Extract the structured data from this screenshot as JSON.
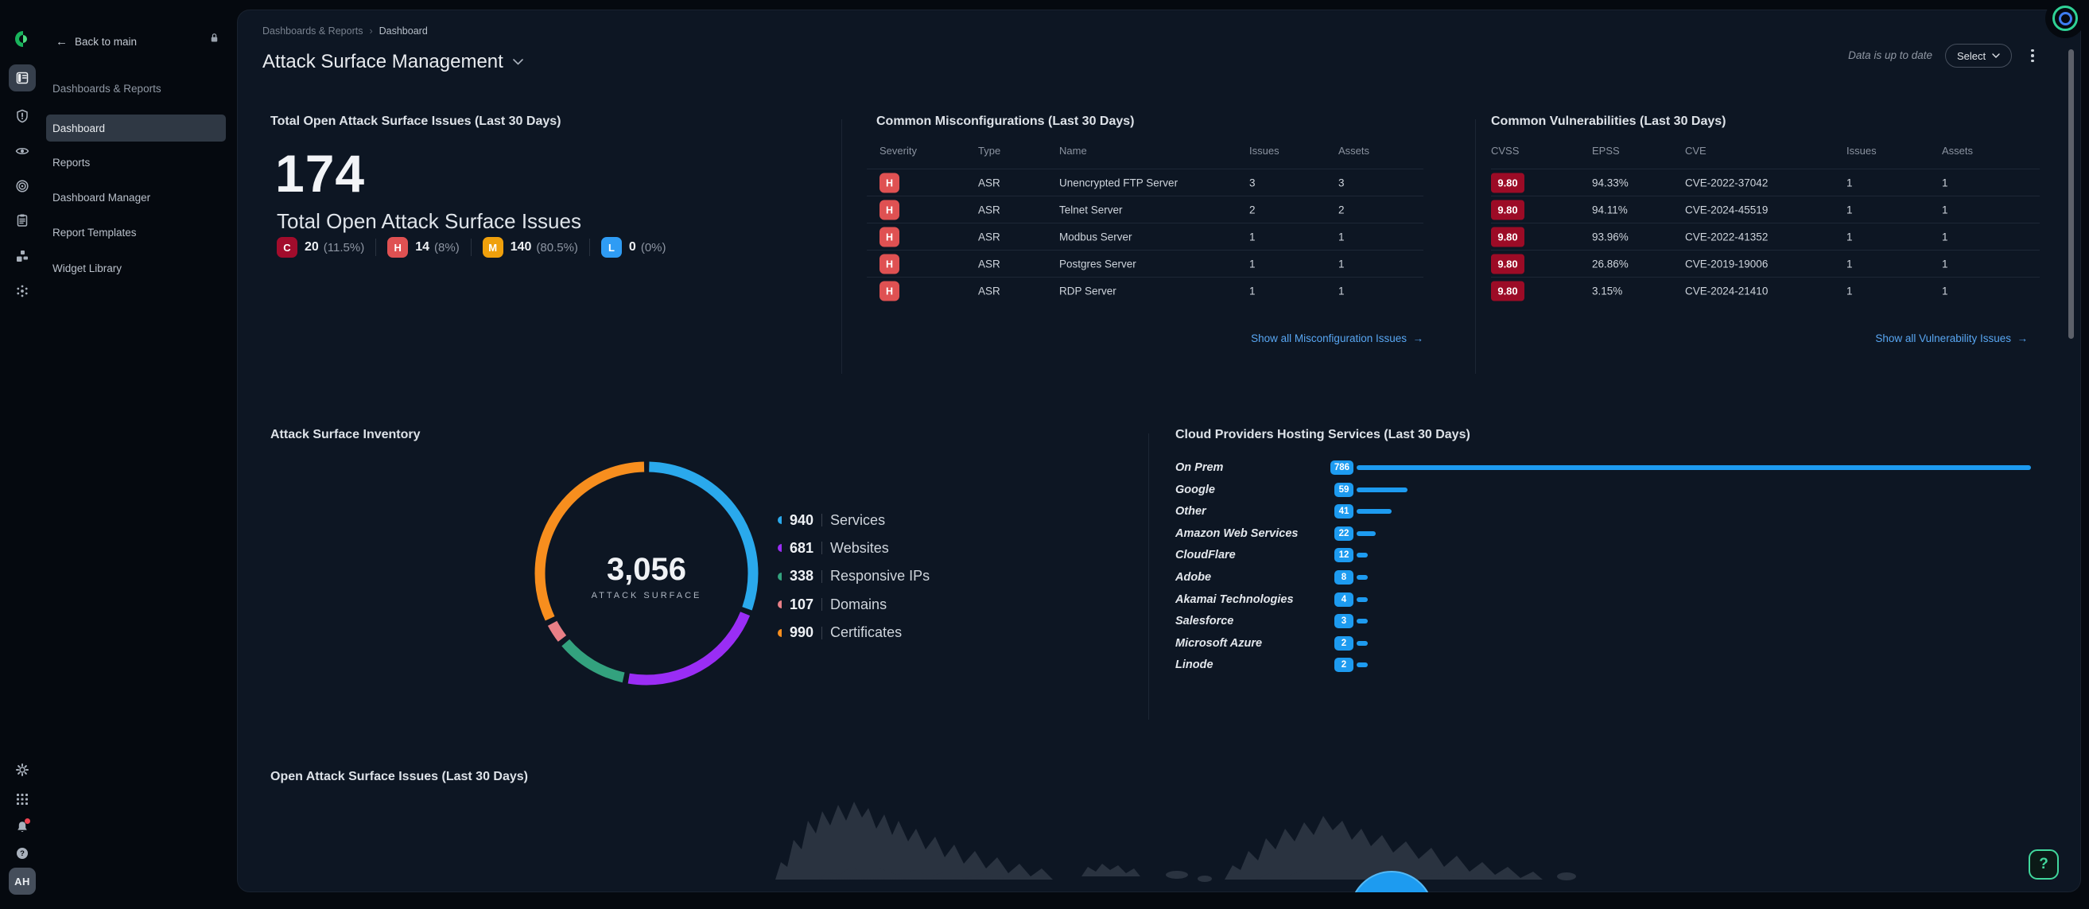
{
  "app": {
    "back_label": "Back to main"
  },
  "sidebar": {
    "section_label": "Dashboards & Reports",
    "items": [
      {
        "label": "Dashboard",
        "active": true
      },
      {
        "label": "Reports",
        "active": false
      },
      {
        "label": "Dashboard Manager",
        "active": false
      },
      {
        "label": "Report Templates",
        "active": false
      },
      {
        "label": "Widget Library",
        "active": false
      }
    ],
    "avatar_initials": "AH"
  },
  "rail_icons": [
    "dashboard-icon",
    "shield-alert-icon",
    "eye-icon",
    "target-icon",
    "clipboard-icon",
    "widgets-icon",
    "network-icon"
  ],
  "rail_bottom_icons": [
    "gear-icon",
    "apps-grid-icon",
    "bell-icon",
    "help-circle-icon"
  ],
  "header": {
    "breadcrumb": [
      "Dashboards & Reports",
      "Dashboard"
    ],
    "title": "Attack Surface Management",
    "status": "Data is up to date",
    "select_label": "Select"
  },
  "totals": {
    "heading": "Total Open Attack Surface Issues (Last 30 Days)",
    "value": "174",
    "subtitle": "Total Open Attack Surface Issues",
    "chips": [
      {
        "letter": "C",
        "count": "20",
        "pct": "(11.5%)",
        "color": "#a20c2c"
      },
      {
        "letter": "H",
        "count": "14",
        "pct": "(8%)",
        "color": "#df5152"
      },
      {
        "letter": "M",
        "count": "140",
        "pct": "(80.5%)",
        "color": "#efa00c"
      },
      {
        "letter": "L",
        "count": "0",
        "pct": "(0%)",
        "color": "#2f9cf4"
      }
    ]
  },
  "misconfig": {
    "heading": "Common Misconfigurations (Last 30 Days)",
    "columns": [
      "Severity",
      "Type",
      "Name",
      "Issues",
      "Assets"
    ],
    "badge_color": "#df5152",
    "rows": [
      [
        "H",
        "ASR",
        "Unencrypted FTP Server",
        "3",
        "3"
      ],
      [
        "H",
        "ASR",
        "Telnet Server",
        "2",
        "2"
      ],
      [
        "H",
        "ASR",
        "Modbus Server",
        "1",
        "1"
      ],
      [
        "H",
        "ASR",
        "Postgres Server",
        "1",
        "1"
      ],
      [
        "H",
        "ASR",
        "RDP Server",
        "1",
        "1"
      ]
    ],
    "link": "Show all Misconfiguration Issues",
    "link_arrow": "→"
  },
  "vulns": {
    "heading": "Common Vulnerabilities (Last 30 Days)",
    "columns": [
      "CVSS",
      "EPSS",
      "CVE",
      "Issues",
      "Assets"
    ],
    "badge_color": "#9c0b26",
    "rows": [
      [
        "9.80",
        "94.33%",
        "CVE-2022-37042",
        "1",
        "1"
      ],
      [
        "9.80",
        "94.11%",
        "CVE-2024-45519",
        "1",
        "1"
      ],
      [
        "9.80",
        "93.96%",
        "CVE-2022-41352",
        "1",
        "1"
      ],
      [
        "9.80",
        "26.86%",
        "CVE-2019-19006",
        "1",
        "1"
      ],
      [
        "9.80",
        "3.15%",
        "CVE-2024-21410",
        "1",
        "1"
      ]
    ],
    "link": "Show all Vulnerability Issues",
    "link_arrow": "→"
  },
  "inventory": {
    "heading": "Attack Surface Inventory",
    "center_value": "3,056",
    "center_label": "ATTACK SURFACE",
    "items": [
      {
        "label": "Services",
        "value": 940,
        "display": "940",
        "color": "#2aa9ec"
      },
      {
        "label": "Websites",
        "value": 681,
        "display": "681",
        "color": "#9a2df5"
      },
      {
        "label": "Responsive IPs",
        "value": 338,
        "display": "338",
        "color": "#33a27e"
      },
      {
        "label": "Domains",
        "value": 107,
        "display": "107",
        "color": "#e87f86"
      },
      {
        "label": "Certificates",
        "value": 990,
        "display": "990",
        "color": "#f78e1e"
      }
    ]
  },
  "cloud": {
    "heading": "Cloud Providers Hosting Services (Last 30 Days)",
    "bar_color": "#1d9bf0",
    "items": [
      {
        "label": "On Prem",
        "value": 786,
        "display": "786"
      },
      {
        "label": "Google",
        "value": 59,
        "display": "59"
      },
      {
        "label": "Other",
        "value": 41,
        "display": "41"
      },
      {
        "label": "Amazon Web Services",
        "value": 22,
        "display": "22"
      },
      {
        "label": "CloudFlare",
        "value": 12,
        "display": "12"
      },
      {
        "label": "Adobe",
        "value": 8,
        "display": "8"
      },
      {
        "label": "Akamai Technologies",
        "value": 4,
        "display": "4"
      },
      {
        "label": "Salesforce",
        "value": 3,
        "display": "3"
      },
      {
        "label": "Microsoft Azure",
        "value": 2,
        "display": "2"
      },
      {
        "label": "Linode",
        "value": 2,
        "display": "2"
      }
    ]
  },
  "map_section": {
    "heading": "Open Attack Surface Issues (Last 30 Days)"
  },
  "help": {
    "label": "?"
  }
}
